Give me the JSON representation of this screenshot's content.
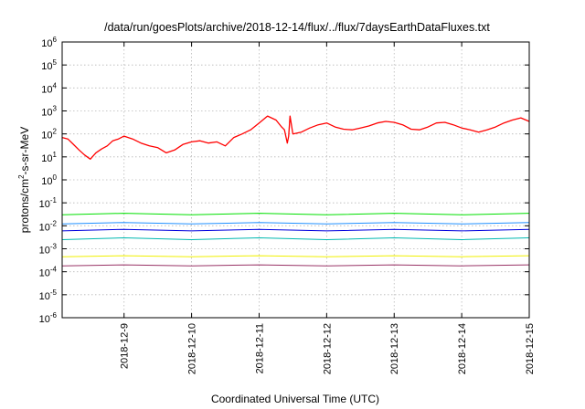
{
  "chart_data": {
    "type": "line",
    "title": "/data/run/goesPlots/archive/2018-12-14/flux/../flux/7daysEarthDataFluxes.txt",
    "xlabel": "Coordinated Universal Time (UTC)",
    "ylabel": "protons/cm²-s-sr-MeV",
    "ylabel_parts": {
      "pre": "protons/cm",
      "sup": "2",
      "post": "-s-sr-MeV"
    },
    "y_scale": "log",
    "ylim": [
      1e-06,
      1000000.0
    ],
    "y_ticks": [
      {
        "value": 1e-06,
        "base": "10",
        "exp": "-6"
      },
      {
        "value": 1e-05,
        "base": "10",
        "exp": "-5"
      },
      {
        "value": 0.0001,
        "base": "10",
        "exp": "-4"
      },
      {
        "value": 0.001,
        "base": "10",
        "exp": "-3"
      },
      {
        "value": 0.01,
        "base": "10",
        "exp": "-2"
      },
      {
        "value": 0.1,
        "base": "10",
        "exp": "-1"
      },
      {
        "value": 1,
        "base": "10",
        "exp": "0"
      },
      {
        "value": 10.0,
        "base": "10",
        "exp": "1"
      },
      {
        "value": 100.0,
        "base": "10",
        "exp": "2"
      },
      {
        "value": 1000.0,
        "base": "10",
        "exp": "3"
      },
      {
        "value": 10000.0,
        "base": "10",
        "exp": "4"
      },
      {
        "value": 100000.0,
        "base": "10",
        "exp": "5"
      },
      {
        "value": 1000000.0,
        "base": "10",
        "exp": "6"
      }
    ],
    "xlim": [
      "2018-12-08T02:00",
      "2018-12-15T00:00"
    ],
    "x_ticks": [
      "2018-12-9",
      "2018-12-10",
      "2018-12-11",
      "2018-12-12",
      "2018-12-13",
      "2018-12-14",
      "2018-12-15"
    ],
    "grid": true,
    "series": [
      {
        "color": "#ff0000",
        "width": 1.3,
        "x": [
          "2018-12-08T02:00",
          "2018-12-08T04:00",
          "2018-12-08T06:00",
          "2018-12-08T08:00",
          "2018-12-08T10:00",
          "2018-12-08T12:00",
          "2018-12-08T14:00",
          "2018-12-08T16:00",
          "2018-12-08T18:00",
          "2018-12-08T20:00",
          "2018-12-08T22:00",
          "2018-12-09T00:00",
          "2018-12-09T03:00",
          "2018-12-09T06:00",
          "2018-12-09T09:00",
          "2018-12-09T12:00",
          "2018-12-09T15:00",
          "2018-12-09T18:00",
          "2018-12-09T21:00",
          "2018-12-10T00:00",
          "2018-12-10T03:00",
          "2018-12-10T06:00",
          "2018-12-10T09:00",
          "2018-12-10T12:00",
          "2018-12-10T15:00",
          "2018-12-10T18:00",
          "2018-12-10T21:00",
          "2018-12-11T00:00",
          "2018-12-11T03:00",
          "2018-12-11T06:00",
          "2018-12-11T08:00",
          "2018-12-11T09:00",
          "2018-12-11T10:00",
          "2018-12-11T10:30",
          "2018-12-11T11:00",
          "2018-12-11T12:00",
          "2018-12-11T15:00",
          "2018-12-11T18:00",
          "2018-12-11T21:00",
          "2018-12-12T00:00",
          "2018-12-12T03:00",
          "2018-12-12T06:00",
          "2018-12-12T09:00",
          "2018-12-12T12:00",
          "2018-12-12T15:00",
          "2018-12-12T18:00",
          "2018-12-12T21:00",
          "2018-12-13T00:00",
          "2018-12-13T03:00",
          "2018-12-13T06:00",
          "2018-12-13T09:00",
          "2018-12-13T12:00",
          "2018-12-13T15:00",
          "2018-12-13T18:00",
          "2018-12-13T21:00",
          "2018-12-14T00:00",
          "2018-12-14T03:00",
          "2018-12-14T06:00",
          "2018-12-14T09:00",
          "2018-12-14T12:00",
          "2018-12-14T15:00",
          "2018-12-14T18:00",
          "2018-12-14T21:00",
          "2018-12-15T00:00"
        ],
        "y": [
          70,
          60,
          35,
          20,
          12,
          8,
          15,
          22,
          30,
          50,
          60,
          80,
          60,
          40,
          30,
          25,
          15,
          20,
          35,
          45,
          50,
          40,
          45,
          30,
          70,
          100,
          150,
          300,
          600,
          400,
          200,
          150,
          40,
          80,
          600,
          100,
          120,
          180,
          250,
          300,
          200,
          160,
          150,
          180,
          220,
          300,
          350,
          320,
          250,
          160,
          150,
          200,
          300,
          320,
          250,
          180,
          150,
          120,
          150,
          200,
          300,
          400,
          500,
          350
        ]
      },
      {
        "color": "#00e000",
        "width": 1,
        "x": [
          "2018-12-08T02:00",
          "2018-12-09T00:00",
          "2018-12-10T00:00",
          "2018-12-11T00:00",
          "2018-12-12T00:00",
          "2018-12-13T00:00",
          "2018-12-14T00:00",
          "2018-12-15T00:00"
        ],
        "y": [
          0.03,
          0.035,
          0.03,
          0.035,
          0.03,
          0.035,
          0.03,
          0.035
        ]
      },
      {
        "color": "#00b8b0",
        "width": 1,
        "x": [
          "2018-12-08T02:00",
          "2018-12-09T00:00",
          "2018-12-10T00:00",
          "2018-12-11T00:00",
          "2018-12-12T00:00",
          "2018-12-13T00:00",
          "2018-12-14T00:00",
          "2018-12-15T00:00"
        ],
        "y": [
          0.0025,
          0.003,
          0.0025,
          0.003,
          0.0025,
          0.003,
          0.0025,
          0.003
        ]
      },
      {
        "color": "#2090ff",
        "width": 1,
        "x": [
          "2018-12-08T02:00",
          "2018-12-09T00:00",
          "2018-12-10T00:00",
          "2018-12-11T00:00",
          "2018-12-12T00:00",
          "2018-12-13T00:00",
          "2018-12-14T00:00",
          "2018-12-15T00:00"
        ],
        "y": [
          0.012,
          0.014,
          0.012,
          0.014,
          0.012,
          0.014,
          0.012,
          0.014
        ]
      },
      {
        "color": "#0000dd",
        "width": 1,
        "x": [
          "2018-12-08T02:00",
          "2018-12-09T00:00",
          "2018-12-10T00:00",
          "2018-12-11T00:00",
          "2018-12-12T00:00",
          "2018-12-13T00:00",
          "2018-12-14T00:00",
          "2018-12-15T00:00"
        ],
        "y": [
          0.006,
          0.007,
          0.006,
          0.007,
          0.006,
          0.007,
          0.006,
          0.007
        ]
      },
      {
        "color": "#f0f000",
        "width": 1,
        "x": [
          "2018-12-08T02:00",
          "2018-12-09T00:00",
          "2018-12-10T00:00",
          "2018-12-11T00:00",
          "2018-12-12T00:00",
          "2018-12-13T00:00",
          "2018-12-14T00:00",
          "2018-12-15T00:00"
        ],
        "y": [
          0.00045,
          0.0005,
          0.00045,
          0.0005,
          0.00045,
          0.0005,
          0.00045,
          0.0005
        ]
      },
      {
        "color": "#993366",
        "width": 1,
        "x": [
          "2018-12-08T02:00",
          "2018-12-09T00:00",
          "2018-12-10T00:00",
          "2018-12-11T00:00",
          "2018-12-12T00:00",
          "2018-12-13T00:00",
          "2018-12-14T00:00",
          "2018-12-15T00:00"
        ],
        "y": [
          0.00018,
          0.0002,
          0.00018,
          0.0002,
          0.00018,
          0.0002,
          0.00018,
          0.0002
        ]
      }
    ]
  }
}
